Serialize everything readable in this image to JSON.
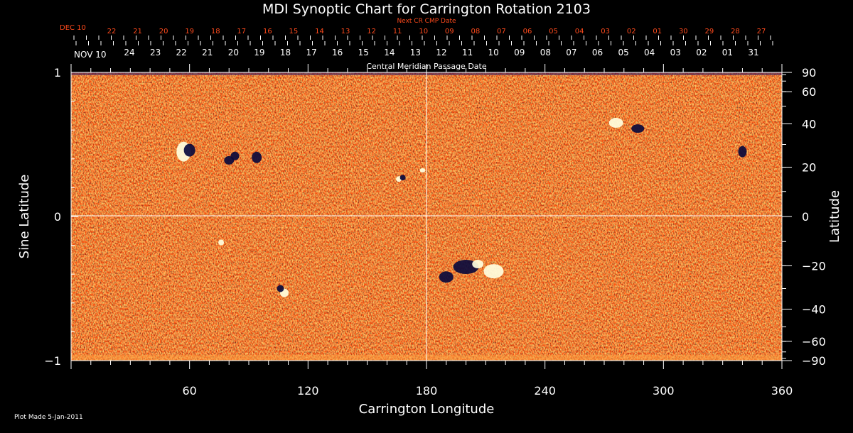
{
  "chart_data": {
    "type": "heatmap",
    "title": "MDI Synoptic Chart for Carrington Rotation 2103",
    "xlabel": "Carrington Longitude",
    "ylabel_left": "Sine Latitude",
    "ylabel_right": "Latitude",
    "xlim": [
      0,
      360
    ],
    "ylim": [
      -1,
      1
    ],
    "x_tick_labels": [
      "60",
      "120",
      "180",
      "240",
      "300",
      "360"
    ],
    "y_left_tick_labels": [
      "1",
      "0",
      "−1"
    ],
    "y_right_tick_labels": [
      "90",
      "60",
      "40",
      "20",
      "0",
      "−20",
      "−40",
      "−60",
      "−90"
    ],
    "y_right_tick_values": [
      90,
      60,
      40,
      20,
      0,
      -20,
      -40,
      -60,
      -90
    ],
    "next_cr_label": "Next CR CMP Date",
    "next_cr_month": "DEC 10",
    "next_cr_dates": [
      "22",
      "21",
      "20",
      "19",
      "18",
      "17",
      "16",
      "15",
      "14",
      "13",
      "12",
      "11",
      "10",
      "09",
      "08",
      "07",
      "06",
      "05",
      "04",
      "03",
      "02",
      "01",
      "30",
      "29",
      "28",
      "27"
    ],
    "cmp_month": "NOV 10",
    "cmp_label": "Central Meridian Passage Date",
    "cmp_dates": [
      "24",
      "23",
      "22",
      "21",
      "20",
      "19",
      "18",
      "17",
      "16",
      "15",
      "14",
      "13",
      "12",
      "11",
      "10",
      "09",
      "08",
      "07",
      "06",
      "05",
      "04",
      "03",
      "02",
      "01",
      "31"
    ],
    "footer": "Plot Made  5-Jan-2011",
    "colors": {
      "background": "#ff5a14",
      "positive": "#ffffe0",
      "negative": "#0a0a3c",
      "accent_text": "#ff4a1c"
    }
  }
}
